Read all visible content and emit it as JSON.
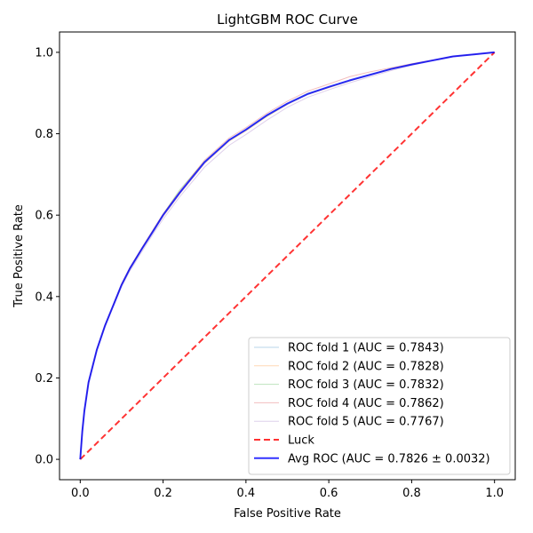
{
  "chart_data": {
    "type": "line",
    "title": "LightGBM ROC Curve",
    "xlabel": "False Positive Rate",
    "ylabel": "True Positive Rate",
    "xlim": [
      -0.05,
      1.05
    ],
    "ylim": [
      -0.05,
      1.05
    ],
    "xticks": [
      "0.0",
      "0.2",
      "0.4",
      "0.6",
      "0.8",
      "1.0"
    ],
    "yticks": [
      "0.0",
      "0.2",
      "0.4",
      "0.6",
      "0.8",
      "1.0"
    ],
    "grid": false,
    "legend_position": "lower-right",
    "series": [
      {
        "name": "ROC fold 1 (AUC = 0.7843)",
        "color": "#1f77b4",
        "style": "thin-translucent",
        "x": [
          0,
          0.005,
          0.01,
          0.02,
          0.04,
          0.06,
          0.08,
          0.1,
          0.12,
          0.15,
          0.18,
          0.2,
          0.24,
          0.3,
          0.36,
          0.4,
          0.45,
          0.5,
          0.55,
          0.6,
          0.65,
          0.7,
          0.75,
          0.8,
          0.85,
          0.9,
          0.95,
          1.0
        ],
        "y": [
          0,
          0.07,
          0.12,
          0.19,
          0.27,
          0.33,
          0.38,
          0.43,
          0.47,
          0.52,
          0.57,
          0.6,
          0.655,
          0.73,
          0.785,
          0.81,
          0.845,
          0.875,
          0.9,
          0.915,
          0.93,
          0.945,
          0.96,
          0.97,
          0.98,
          0.99,
          0.995,
          1.0
        ]
      },
      {
        "name": "ROC fold 2 (AUC = 0.7828)",
        "color": "#ff7f0e",
        "style": "thin-translucent",
        "x": [
          0,
          0.005,
          0.01,
          0.02,
          0.04,
          0.06,
          0.08,
          0.1,
          0.12,
          0.15,
          0.18,
          0.2,
          0.24,
          0.3,
          0.36,
          0.4,
          0.45,
          0.5,
          0.55,
          0.6,
          0.65,
          0.7,
          0.75,
          0.8,
          0.85,
          0.9,
          0.95,
          1.0
        ],
        "y": [
          0,
          0.068,
          0.118,
          0.188,
          0.268,
          0.328,
          0.378,
          0.428,
          0.468,
          0.518,
          0.566,
          0.597,
          0.652,
          0.727,
          0.782,
          0.807,
          0.842,
          0.872,
          0.897,
          0.913,
          0.93,
          0.945,
          0.958,
          0.97,
          0.98,
          0.99,
          0.995,
          1.0
        ]
      },
      {
        "name": "ROC fold 3 (AUC = 0.7832)",
        "color": "#2ca02c",
        "style": "thin-translucent",
        "x": [
          0,
          0.005,
          0.01,
          0.02,
          0.04,
          0.06,
          0.08,
          0.1,
          0.12,
          0.15,
          0.18,
          0.2,
          0.24,
          0.3,
          0.36,
          0.4,
          0.45,
          0.5,
          0.55,
          0.6,
          0.65,
          0.7,
          0.75,
          0.8,
          0.85,
          0.9,
          0.95,
          1.0
        ],
        "y": [
          0,
          0.069,
          0.119,
          0.189,
          0.269,
          0.329,
          0.379,
          0.429,
          0.469,
          0.519,
          0.568,
          0.602,
          0.662,
          0.732,
          0.784,
          0.809,
          0.843,
          0.873,
          0.898,
          0.914,
          0.93,
          0.945,
          0.959,
          0.97,
          0.98,
          0.99,
          0.995,
          1.0
        ]
      },
      {
        "name": "ROC fold 4 (AUC = 0.7862)",
        "color": "#d62728",
        "style": "thin-translucent",
        "x": [
          0,
          0.005,
          0.01,
          0.02,
          0.04,
          0.06,
          0.08,
          0.1,
          0.12,
          0.15,
          0.18,
          0.2,
          0.24,
          0.3,
          0.36,
          0.4,
          0.45,
          0.5,
          0.55,
          0.6,
          0.65,
          0.7,
          0.75,
          0.8,
          0.85,
          0.9,
          0.95,
          1.0
        ],
        "y": [
          0,
          0.071,
          0.121,
          0.191,
          0.271,
          0.331,
          0.381,
          0.432,
          0.472,
          0.522,
          0.571,
          0.603,
          0.658,
          0.735,
          0.79,
          0.815,
          0.85,
          0.88,
          0.905,
          0.922,
          0.94,
          0.952,
          0.962,
          0.972,
          0.981,
          0.99,
          0.995,
          1.0
        ]
      },
      {
        "name": "ROC fold 5 (AUC = 0.7767)",
        "color": "#9467bd",
        "style": "thin-translucent",
        "x": [
          0,
          0.005,
          0.01,
          0.02,
          0.04,
          0.06,
          0.08,
          0.1,
          0.12,
          0.15,
          0.18,
          0.2,
          0.24,
          0.3,
          0.36,
          0.4,
          0.45,
          0.5,
          0.55,
          0.6,
          0.65,
          0.7,
          0.75,
          0.8,
          0.85,
          0.9,
          0.95,
          1.0
        ],
        "y": [
          0,
          0.066,
          0.116,
          0.186,
          0.266,
          0.326,
          0.376,
          0.425,
          0.463,
          0.512,
          0.56,
          0.59,
          0.645,
          0.718,
          0.772,
          0.798,
          0.833,
          0.865,
          0.89,
          0.908,
          0.925,
          0.94,
          0.955,
          0.968,
          0.979,
          0.989,
          0.995,
          1.0
        ]
      },
      {
        "name": "Luck",
        "color": "#ff0000",
        "style": "dashed",
        "x": [
          0,
          1
        ],
        "y": [
          0,
          1
        ]
      },
      {
        "name": "Avg ROC (AUC = 0.7826 ± 0.0032)",
        "color": "#0000ff",
        "style": "thick",
        "x": [
          0,
          0.005,
          0.01,
          0.02,
          0.04,
          0.06,
          0.08,
          0.1,
          0.12,
          0.15,
          0.18,
          0.2,
          0.24,
          0.3,
          0.36,
          0.4,
          0.45,
          0.5,
          0.55,
          0.6,
          0.65,
          0.7,
          0.75,
          0.8,
          0.85,
          0.9,
          0.95,
          1.0
        ],
        "y": [
          0,
          0.069,
          0.119,
          0.189,
          0.269,
          0.329,
          0.379,
          0.429,
          0.469,
          0.519,
          0.567,
          0.6,
          0.655,
          0.73,
          0.785,
          0.81,
          0.845,
          0.874,
          0.898,
          0.915,
          0.931,
          0.945,
          0.959,
          0.97,
          0.98,
          0.99,
          0.995,
          1.0
        ]
      }
    ]
  }
}
